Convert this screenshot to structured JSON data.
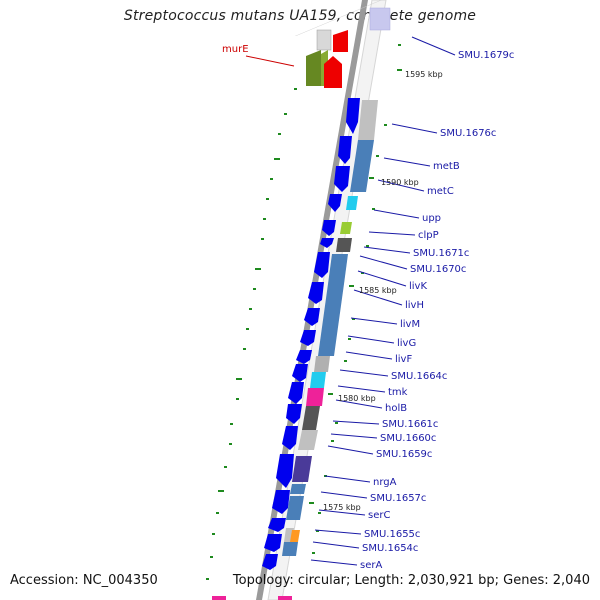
{
  "title": "Streptococcus mutans UA159, complete genome",
  "footer": {
    "accession": "Accession: NC_004350",
    "summary": "Topology: circular; Length: 2,030,921 bp; Genes: 2,040"
  },
  "colors": {
    "forward_cds": "#0000ee",
    "backbone": "#888888",
    "gene_label": "#1a1aa6",
    "highlight_label": "#cc0000",
    "tick": "#1e8a1e"
  },
  "positions": [
    {
      "label": "1595 kbp"
    },
    {
      "label": "1590 kbp"
    },
    {
      "label": "1585 kbp"
    },
    {
      "label": "1580 kbp"
    },
    {
      "label": "1575 kbp"
    }
  ],
  "genes": [
    {
      "label": "murE",
      "highlight": true
    },
    {
      "label": "SMU.1679c"
    },
    {
      "label": "SMU.1676c"
    },
    {
      "label": "metB"
    },
    {
      "label": "metC"
    },
    {
      "label": "upp"
    },
    {
      "label": "clpP"
    },
    {
      "label": "SMU.1671c"
    },
    {
      "label": "SMU.1670c"
    },
    {
      "label": "livK"
    },
    {
      "label": "livH"
    },
    {
      "label": "livM"
    },
    {
      "label": "livG"
    },
    {
      "label": "livF"
    },
    {
      "label": "SMU.1664c"
    },
    {
      "label": "tmk"
    },
    {
      "label": "holB"
    },
    {
      "label": "SMU.1661c"
    },
    {
      "label": "SMU.1660c"
    },
    {
      "label": "SMU.1659c"
    },
    {
      "label": "nrgA"
    },
    {
      "label": "SMU.1657c"
    },
    {
      "label": "serC"
    },
    {
      "label": "SMU.1655c"
    },
    {
      "label": "SMU.1654c"
    },
    {
      "label": "serA"
    }
  ]
}
